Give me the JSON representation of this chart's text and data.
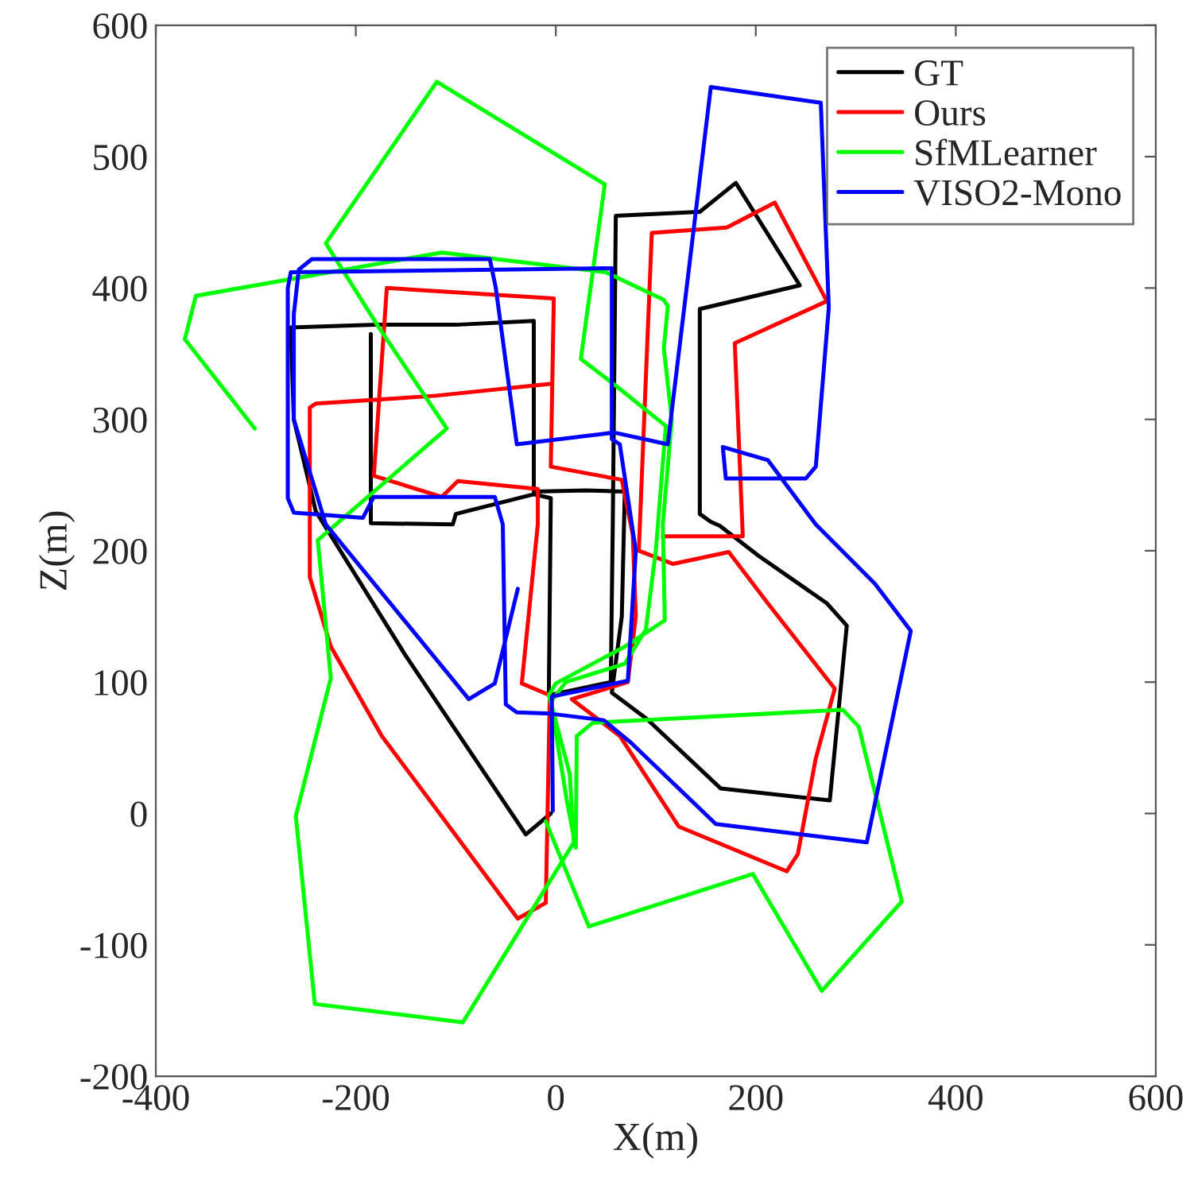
{
  "chart_data": {
    "type": "line",
    "xlabel": "X(m)",
    "ylabel": "Z(m)",
    "xlim": [
      -400,
      600
    ],
    "ylim": [
      -200,
      600
    ],
    "xticks": [
      -400,
      -200,
      0,
      200,
      400,
      600
    ],
    "yticks": [
      -200,
      -100,
      0,
      100,
      200,
      300,
      400,
      500,
      600
    ],
    "legend": "top right",
    "grid": false,
    "line_style": "solid",
    "series": [
      {
        "name": "GT",
        "color": "#000000",
        "x": [
          -5,
          -30,
          -150,
          -240,
          -262,
          -265,
          -180,
          -100,
          -22,
          -22,
          30,
          69,
          66,
          56,
          91,
          165,
          274,
          291,
          271,
          203,
          164,
          155,
          144,
          144,
          244,
          180,
          144,
          60,
          57,
          55,
          -7,
          -5,
          -22,
          -100,
          -103,
          -185,
          -185
        ],
        "values": [
          0,
          -16,
          120,
          230,
          300,
          370,
          372,
          372,
          375,
          245,
          246,
          245,
          150,
          92,
          72,
          19,
          10,
          143,
          160,
          196,
          219,
          222,
          228,
          384,
          402,
          480,
          458,
          455,
          222,
          100,
          90,
          240,
          243,
          228,
          220,
          221,
          365
        ]
      },
      {
        "name": "Ours",
        "color": "#ff0000",
        "x": [
          -6,
          -120,
          -240,
          -246,
          -246,
          -225,
          -174,
          -38,
          -10,
          -6,
          -34,
          -18,
          -18,
          -98,
          -114,
          -182,
          -169,
          -2,
          -5,
          66,
          77,
          80,
          72,
          16,
          64,
          123,
          231,
          242,
          260,
          279,
          212,
          173,
          117,
          83,
          96,
          171,
          219,
          271,
          179,
          187,
          107
        ],
        "values": [
          327,
          318,
          312,
          309,
          180,
          127,
          59,
          -80,
          -68,
          90,
          99,
          220,
          247,
          253,
          241,
          257,
          400,
          392,
          264,
          254,
          212,
          150,
          100,
          87,
          59,
          -10,
          -44,
          -31,
          42,
          95,
          160,
          199,
          190,
          200,
          442,
          446,
          465,
          390,
          358,
          211,
          211
        ]
      },
      {
        "name": "SfMLearner",
        "color": "#00ff00",
        "x": [
          -301,
          -371,
          -360,
          -114,
          50,
          108,
          112,
          108,
          116,
          107,
          109,
          69,
          0,
          -7,
          14,
          18,
          -93,
          -241,
          -260,
          -225,
          -238,
          -220,
          -109,
          -177,
          -230,
          -119,
          49,
          25,
          61,
          110,
          100,
          90,
          69,
          10,
          -5,
          11,
          20,
          21,
          37,
          287,
          303,
          346,
          266,
          197,
          33,
          -10
        ],
        "values": [
          293,
          361,
          394,
          427,
          412,
          391,
          386,
          354,
          300,
          220,
          147,
          127,
          99,
          90,
          30,
          -22,
          -159,
          -145,
          -2,
          103,
          208,
          220,
          293,
          370,
          434,
          557,
          479,
          346,
          325,
          295,
          200,
          140,
          114,
          100,
          85,
          10,
          -26,
          59,
          69,
          79,
          66,
          -67,
          -135,
          -46,
          -86,
          -6
        ]
      },
      {
        "name": "VISO2-Mono",
        "color": "#0000ff",
        "x": [
          -3,
          -4,
          72,
          80,
          64,
          56,
          56,
          -265,
          -268,
          -268,
          -262,
          -193,
          -182,
          -61,
          -53,
          -50,
          -39,
          -6,
          48,
          75,
          160,
          311,
          355,
          319,
          260,
          212,
          167,
          170,
          250,
          260,
          273,
          265,
          155,
          115,
          112,
          58,
          -39,
          -60,
          -66,
          -244,
          -257,
          -262,
          -262,
          -230,
          -87,
          -61,
          -38
        ],
        "values": [
          2,
          89,
          101,
          200,
          281,
          285,
          415,
          412,
          400,
          240,
          229,
          225,
          241,
          241,
          220,
          83,
          77,
          76,
          71,
          54,
          -8,
          -22,
          139,
          175,
          220,
          269,
          279,
          255,
          255,
          264,
          385,
          541,
          553,
          300,
          281,
          290,
          281,
          400,
          422,
          422,
          414,
          380,
          300,
          220,
          87,
          99,
          171
        ]
      }
    ]
  }
}
